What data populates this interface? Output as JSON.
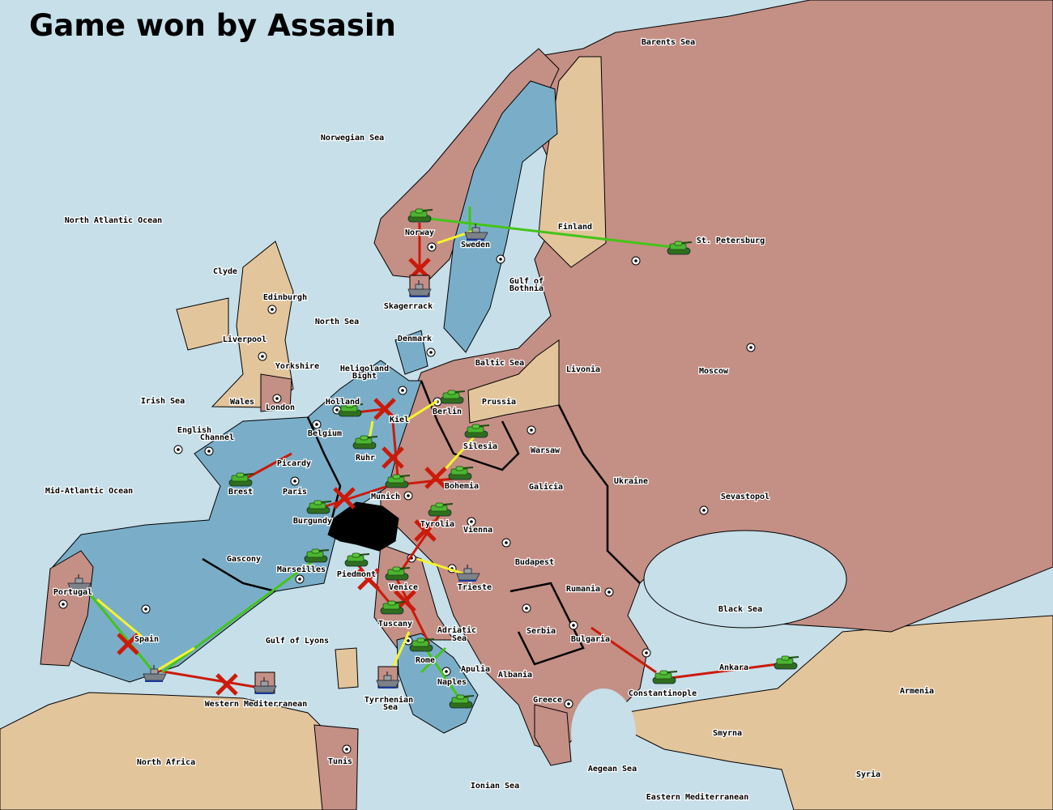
{
  "title": "Game won by Assasin",
  "colors": {
    "sea": "#c6dfe9",
    "power_blue": "#7aaec8",
    "power_pink": "#c48f85",
    "neutral_tan": "#e3c59c",
    "impassable": "#000000",
    "order_move": "#cc1a0a",
    "order_support": "#f5f52a",
    "order_convoy": "#44c41a"
  },
  "labels": [
    "Barents Sea",
    "Norwegian Sea",
    "North Atlantic Ocean",
    "Finland",
    "St. Petersburg",
    "Norway",
    "Sweden",
    "Clyde",
    "Edinburgh",
    "Skagerrack",
    "Gulf of",
    "Bothnia",
    "North Sea",
    "Liverpool",
    "Denmark",
    "Yorkshire",
    "Heligoland",
    "Bight",
    "Baltic Sea",
    "Livonia",
    "Moscow",
    "Irish Sea",
    "Wales",
    "Holland",
    "Prussia",
    "London",
    "Berlin",
    "Kiel",
    "English",
    "Channel",
    "Belgium",
    "Silesia",
    "Warsaw",
    "Ruhr",
    "Picardy",
    "Ukraine",
    "Brest",
    "Paris",
    "Mid-Atlantic Ocean",
    "Bohemia",
    "Galicia",
    "Munich",
    "Sevastopol",
    "Burgundy",
    "Tyrolia",
    "Vienna",
    "Gascony",
    "Budapest",
    "Marseilles",
    "Piedmont",
    "Portugal",
    "Venice",
    "Trieste",
    "Rumania",
    "Black Sea",
    "Serbia",
    "Spain",
    "Tuscany",
    "Adriatic",
    "Sea",
    "Bulgaria",
    "Gulf of Lyons",
    "Rome",
    "Apulia",
    "Albania",
    "Armenia",
    "Naples",
    "Constantinople",
    "Ankara",
    "Greece",
    "Western Mediterranean",
    "Tyrrhenian",
    "Sea",
    "Smyrna",
    "North Africa",
    "Tunis",
    "Aegean Sea",
    "Syria",
    "Ionian Sea",
    "Eastern Mediterranean"
  ],
  "units": [
    {
      "type": "army",
      "province": "Norway"
    },
    {
      "type": "army",
      "province": "St. Petersburg"
    },
    {
      "type": "army",
      "province": "Berlin"
    },
    {
      "type": "army",
      "province": "Holland"
    },
    {
      "type": "army",
      "province": "Ruhr"
    },
    {
      "type": "army",
      "province": "Silesia"
    },
    {
      "type": "army",
      "province": "Bohemia"
    },
    {
      "type": "army",
      "province": "Munich"
    },
    {
      "type": "army",
      "province": "Burgundy"
    },
    {
      "type": "army",
      "province": "Tyrolia"
    },
    {
      "type": "army",
      "province": "Marseilles"
    },
    {
      "type": "army",
      "province": "Piedmont"
    },
    {
      "type": "army",
      "province": "Venice"
    },
    {
      "type": "army",
      "province": "Tuscany"
    },
    {
      "type": "army",
      "province": "Rome"
    },
    {
      "type": "army",
      "province": "Naples"
    },
    {
      "type": "army",
      "province": "Brest"
    },
    {
      "type": "army",
      "province": "Constantinople"
    },
    {
      "type": "army",
      "province": "Ankara"
    },
    {
      "type": "fleet",
      "province": "Sweden"
    },
    {
      "type": "fleet",
      "province": "Skagerrack"
    },
    {
      "type": "fleet",
      "province": "Trieste"
    },
    {
      "type": "fleet",
      "province": "Portugal"
    },
    {
      "type": "fleet",
      "province": "Spain"
    },
    {
      "type": "fleet",
      "province": "Western Mediterranean"
    },
    {
      "type": "fleet",
      "province": "Tyrrhenian Sea"
    }
  ]
}
